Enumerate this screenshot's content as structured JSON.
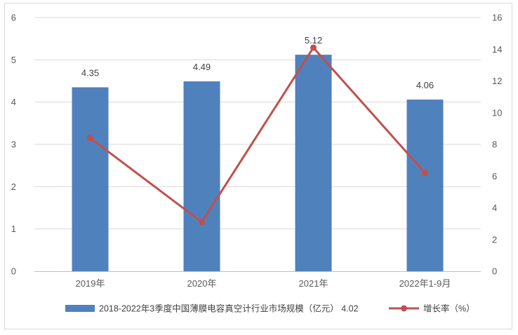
{
  "chart_data": {
    "type": "bar",
    "categories": [
      "2019年",
      "2020年",
      "2021年",
      "2022年1-9月"
    ],
    "series": [
      {
        "name": "2018-2022年3季度中国薄膜电容真空计行业市场规模（亿元） 4.02",
        "type": "bar",
        "axis": "left",
        "values": [
          4.35,
          4.49,
          5.12,
          4.06
        ],
        "labels": [
          "4.35",
          "4.49",
          "5.12",
          "4.06"
        ],
        "color": "#4f81bd"
      },
      {
        "name": "增长率（%）",
        "type": "line",
        "axis": "right",
        "values": [
          8.4,
          3.1,
          14.1,
          6.2
        ],
        "color": "#c0504d"
      }
    ],
    "y_left": {
      "min": 0,
      "max": 6,
      "step": 1,
      "ticks": [
        "0",
        "1",
        "2",
        "3",
        "4",
        "5",
        "6"
      ]
    },
    "y_right": {
      "min": 0,
      "max": 16,
      "step": 2,
      "ticks": [
        "0",
        "2",
        "4",
        "6",
        "8",
        "10",
        "12",
        "14",
        "16"
      ]
    },
    "grid": true,
    "legend_position": "bottom"
  }
}
